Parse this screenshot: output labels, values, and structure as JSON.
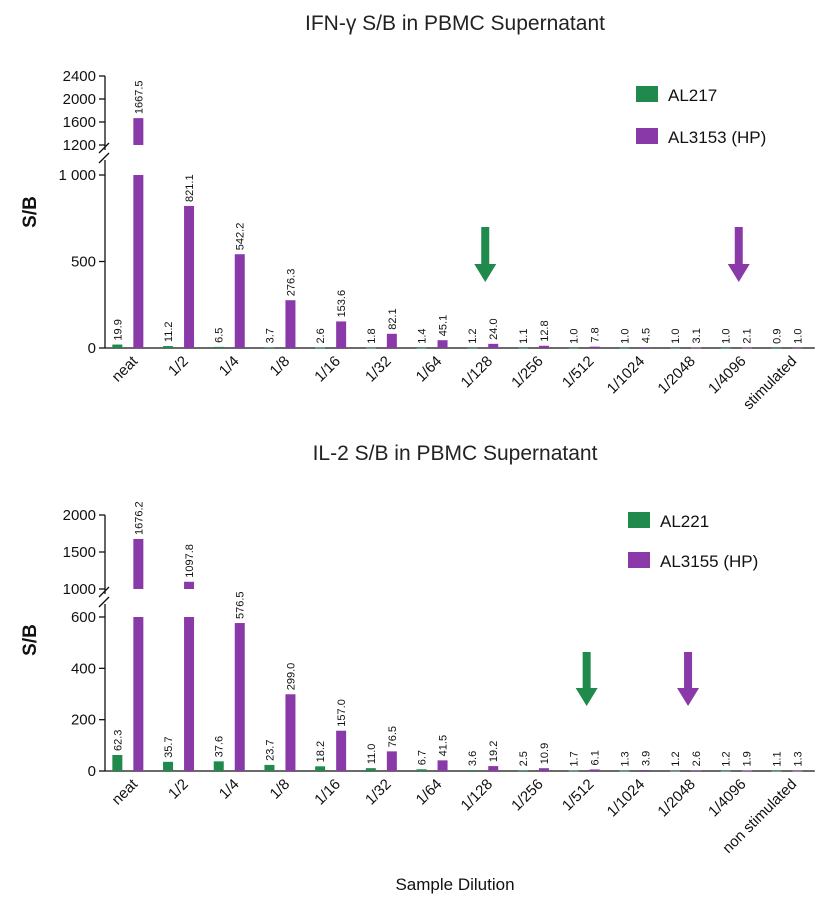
{
  "chart_data": [
    {
      "type": "bar",
      "title": "IFN-γ S/B in PBMC Supernatant",
      "ylabel": "S/B",
      "xlabel": "",
      "categories": [
        "neat",
        "1/2",
        "1/4",
        "1/8",
        "1/16",
        "1/32",
        "1/64",
        "1/128",
        "1/256",
        "1/512",
        "1/1024",
        "1/2048",
        "1/4096",
        "stimulated"
      ],
      "series": [
        {
          "name": "AL217",
          "color": "#1f8a4c",
          "values": [
            19.9,
            11.2,
            6.5,
            3.7,
            2.6,
            1.8,
            1.4,
            1.2,
            1.1,
            1.0,
            1.0,
            1.0,
            1.0,
            0.9
          ],
          "labels": [
            "19.9",
            "11.2",
            "6.5",
            "3.7",
            "2.6",
            "1.8",
            "1.4",
            "1.2",
            "1.1",
            "1.0",
            "1.0",
            "1.0",
            "1.0",
            "0.9"
          ]
        },
        {
          "name": "AL3153 (HP)",
          "color": "#8a3aa8",
          "values": [
            1667.5,
            821.1,
            542.2,
            276.3,
            153.6,
            82.1,
            45.1,
            24.0,
            12.8,
            7.8,
            4.5,
            3.1,
            2.1,
            1.0
          ],
          "labels": [
            "1667.5",
            "821.1",
            "542.2",
            "276.3",
            "153.6",
            "82.1",
            "45.1",
            "24.0",
            "12.8",
            "7.8",
            "4.5",
            "3.1",
            "2.1",
            "1.0"
          ]
        }
      ],
      "axis_break": {
        "lower_range": [
          0,
          1000
        ],
        "upper_range": [
          1000,
          2400
        ]
      },
      "yticks_lower": [
        "0",
        "500",
        "1 000"
      ],
      "yticks_upper": [
        "1200",
        "1600",
        "2000",
        "2400"
      ],
      "legend_position": "top-right",
      "grid": false,
      "arrows": [
        {
          "category": "1/128",
          "color": "#1f8a4c"
        },
        {
          "category": "1/4096",
          "color": "#8a3aa8"
        }
      ]
    },
    {
      "type": "bar",
      "title": "IL-2 S/B in PBMC Supernatant",
      "ylabel": "S/B",
      "xlabel": "Sample Dilution",
      "categories": [
        "neat",
        "1/2",
        "1/4",
        "1/8",
        "1/16",
        "1/32",
        "1/64",
        "1/128",
        "1/256",
        "1/512",
        "1/1024",
        "1/2048",
        "1/4096",
        "non stimulated"
      ],
      "series": [
        {
          "name": "AL221",
          "color": "#1f8a4c",
          "values": [
            62.3,
            35.7,
            37.6,
            23.7,
            18.2,
            11.0,
            6.7,
            3.6,
            2.5,
            1.7,
            1.3,
            1.2,
            1.2,
            1.1
          ],
          "labels": [
            "62.3",
            "35.7",
            "37.6",
            "23.7",
            "18.2",
            "11.0",
            "6.7",
            "3.6",
            "2.5",
            "1.7",
            "1.3",
            "1.2",
            "1.2",
            "1.1"
          ]
        },
        {
          "name": "AL3155 (HP)",
          "color": "#8a3aa8",
          "values": [
            1676.2,
            1097.8,
            576.5,
            299.0,
            157.0,
            76.5,
            41.5,
            19.2,
            10.9,
            6.1,
            3.9,
            2.6,
            1.9,
            1.3
          ],
          "labels": [
            "1676.2",
            "1097.8",
            "576.5",
            "299.0",
            "157.0",
            "76.5",
            "41.5",
            "19.2",
            "10.9",
            "6.1",
            "3.9",
            "2.6",
            "1.9",
            "1.3"
          ]
        }
      ],
      "axis_break": {
        "lower_range": [
          0,
          600
        ],
        "upper_range": [
          1000,
          2000
        ]
      },
      "yticks_lower": [
        "0",
        "200",
        "400",
        "600"
      ],
      "yticks_upper": [
        "1000",
        "1500",
        "2000"
      ],
      "legend_position": "top-right",
      "grid": false,
      "arrows": [
        {
          "category": "1/512",
          "color": "#1f8a4c"
        },
        {
          "category": "1/2048",
          "color": "#8a3aa8"
        }
      ]
    }
  ]
}
